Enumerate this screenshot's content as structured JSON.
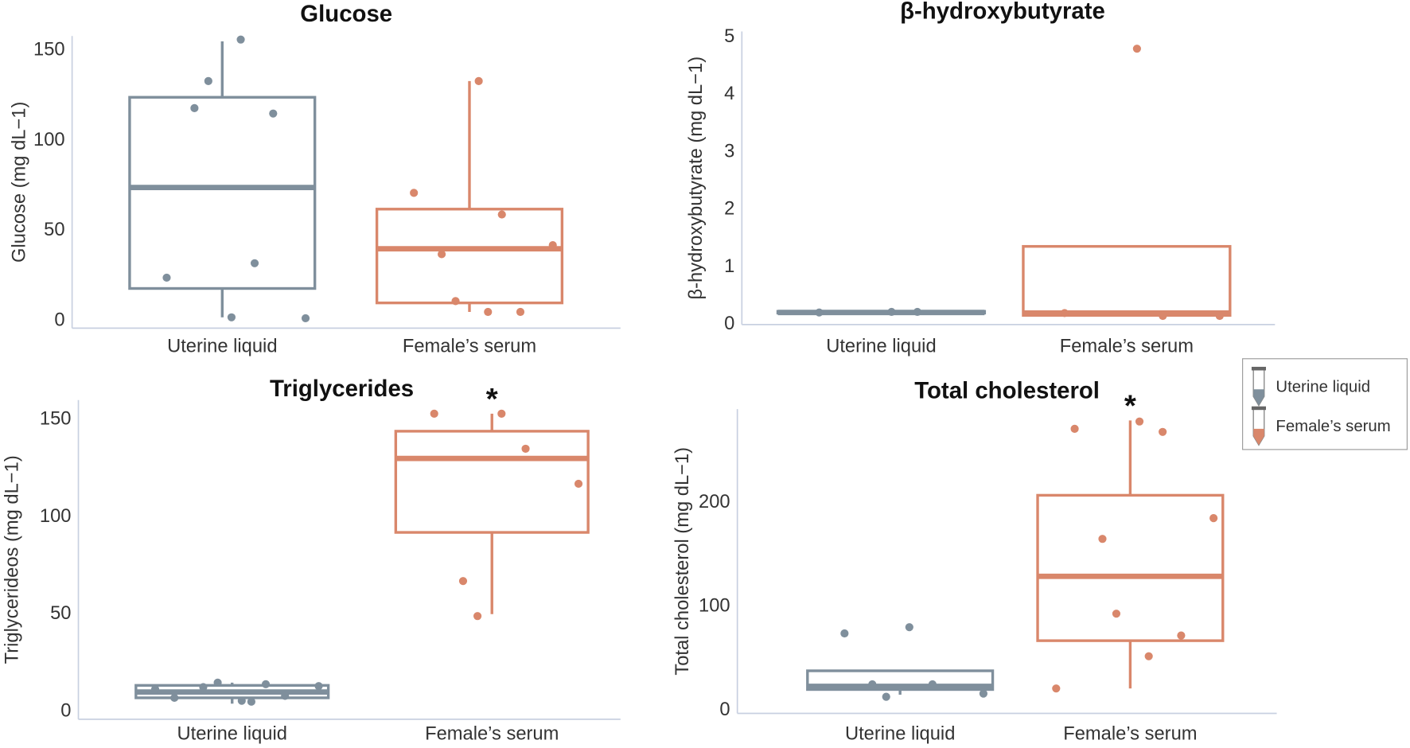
{
  "chart_data": [
    {
      "type": "box",
      "title": "Glucose",
      "y_label": "Glucose (mg dL−1)",
      "categories": [
        "Uterine liquid",
        "Female’s serum"
      ],
      "boxes": [
        {
          "color": "#7f8f9c",
          "min": 2,
          "q1": 18,
          "median": 74,
          "q3": 124,
          "max": 155,
          "points": [
            2,
            24,
            32,
            1.5,
            118,
            133,
            115,
            156
          ]
        },
        {
          "color": "#d9876b",
          "min": 5,
          "q1": 10,
          "median": 40,
          "q3": 62,
          "max": 133,
          "points": [
            133,
            71,
            59,
            42,
            37,
            11,
            5,
            5
          ]
        }
      ],
      "ylim": [
        -4,
        158
      ],
      "yticks": [
        0,
        50,
        100,
        150
      ]
    },
    {
      "type": "box",
      "title": "β-hydroxybutyrate",
      "y_label": "β-hydroxybutyrate (mg dL−1)",
      "categories": [
        "Uterine liquid",
        "Female’s serum"
      ],
      "boxes": [
        {
          "color": "#7f8f9c",
          "min": 0.2,
          "q1": 0.2,
          "median": 0.21,
          "q3": 0.23,
          "max": 0.23,
          "points": [
            0.22,
            0.21,
            0.22
          ]
        },
        {
          "color": "#d9876b",
          "min": 0.16,
          "q1": 0.16,
          "median": 0.2,
          "q3": 1.36,
          "max": 1.36,
          "points": [
            4.8,
            0.2,
            0.15,
            0.15
          ]
        }
      ],
      "ylim": [
        0,
        5.1
      ],
      "yticks": [
        0,
        1,
        2,
        3,
        4,
        5
      ]
    },
    {
      "type": "box",
      "title": "Triglycerides",
      "y_label": "Triglycerideos (mg dL−1)",
      "categories": [
        "Uterine liquid",
        "Female’s serum"
      ],
      "annotation": "*",
      "boxes": [
        {
          "color": "#7f8f9c",
          "min": 4,
          "q1": 7,
          "median": 10,
          "q3": 13.4,
          "max": 14.8,
          "points": [
            5.5,
            7,
            14,
            13,
            12.5,
            14.8,
            8,
            5,
            11.5
          ]
        },
        {
          "color": "#d9876b",
          "min": 50,
          "q1": 92,
          "median": 130,
          "q3": 144,
          "max": 153,
          "points": [
            153,
            153,
            135,
            117,
            67,
            49
          ]
        }
      ],
      "ylim": [
        -4,
        160
      ],
      "yticks": [
        0,
        50,
        100,
        150
      ]
    },
    {
      "type": "box",
      "title": "Total cholesterol",
      "y_label": "Total cholesterol (mg dL−1)",
      "categories": [
        "Uterine liquid",
        "Female’s serum"
      ],
      "annotation": "*",
      "boxes": [
        {
          "color": "#7f8f9c",
          "min": 15,
          "q1": 20,
          "median": 23,
          "q3": 38,
          "max": 38,
          "points": [
            80,
            74,
            25,
            16,
            25,
            13
          ]
        },
        {
          "color": "#d9876b",
          "min": 21,
          "q1": 67,
          "median": 129,
          "q3": 207,
          "max": 279,
          "points": [
            278,
            271,
            268,
            185,
            165,
            93,
            72,
            52,
            21
          ]
        }
      ],
      "ylim": [
        -3,
        290
      ],
      "yticks": [
        0,
        100,
        200
      ]
    }
  ],
  "legend": {
    "items": [
      {
        "label": "Uterine liquid",
        "color": "#7f8f9c"
      },
      {
        "label": "Female’s serum",
        "color": "#d9876b"
      }
    ]
  }
}
